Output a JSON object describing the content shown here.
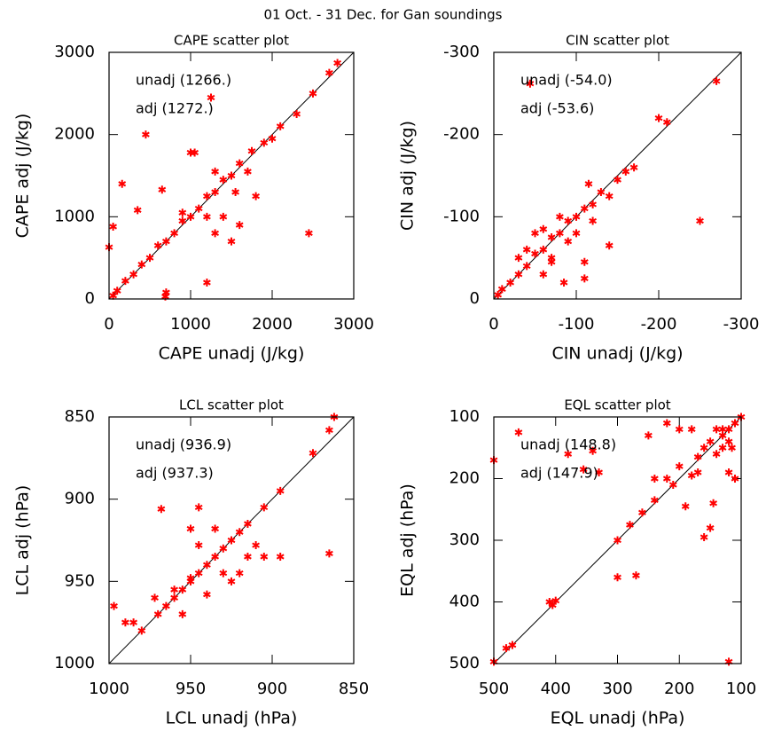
{
  "title": "01 Oct. - 31 Dec. for Gan soundings",
  "chart_data": [
    {
      "type": "scatter",
      "title": "CAPE scatter plot",
      "xlabel": "CAPE unadj (J/kg)",
      "ylabel": "CAPE adj (J/kg)",
      "annotations": [
        "unadj (1266.)",
        "adj (1272.)"
      ],
      "color": "#ff0000",
      "xlim": [
        0,
        3000
      ],
      "ylim": [
        0,
        3000
      ],
      "xticks": [
        0,
        1000,
        2000,
        3000
      ],
      "yticks": [
        0,
        1000,
        2000,
        3000
      ],
      "x": [
        0,
        50,
        160,
        350,
        450,
        650,
        700,
        690,
        1000,
        1050,
        1200,
        1250,
        1500,
        1600,
        2450,
        1800,
        1400,
        1300,
        2800,
        2700,
        2500,
        2300,
        2100,
        2000,
        1900,
        1750,
        1600,
        1500,
        1400,
        1300,
        1200,
        1100,
        1000,
        900,
        800,
        700,
        600,
        500,
        400,
        300,
        200,
        100,
        50,
        1700,
        1300,
        1200,
        900,
        1550
      ],
      "values": [
        630,
        880,
        1400,
        1080,
        2000,
        1330,
        80,
        30,
        1780,
        1780,
        200,
        2450,
        700,
        900,
        800,
        1250,
        1000,
        800,
        2870,
        2750,
        2500,
        2250,
        2100,
        1950,
        1900,
        1800,
        1650,
        1500,
        1450,
        1300,
        1250,
        1100,
        1000,
        950,
        800,
        700,
        650,
        500,
        420,
        300,
        220,
        100,
        40,
        1550,
        1550,
        1000,
        1050,
        1300
      ]
    },
    {
      "type": "scatter",
      "title": "CIN scatter plot",
      "xlabel": "CIN unadj (J/kg)",
      "ylabel": "CIN adj (J/kg)",
      "annotations": [
        "unadj (-54.0)",
        "adj (-53.6)"
      ],
      "color": "#ff0000",
      "xlim": [
        0,
        -300
      ],
      "ylim": [
        0,
        -300
      ],
      "xticks": [
        0,
        -100,
        -200,
        -300
      ],
      "yticks": [
        0,
        -100,
        -200,
        -300
      ],
      "x": [
        -44,
        -270,
        -200,
        -210,
        -250,
        -140,
        -170,
        -160,
        -150,
        -130,
        -120,
        -110,
        -100,
        -90,
        -80,
        -70,
        -60,
        -50,
        -40,
        -30,
        -20,
        -10,
        -5,
        -60,
        -80,
        -50,
        -100,
        -90,
        -70,
        -110,
        -85,
        -110,
        -60,
        -40,
        -30,
        -140,
        -120,
        -70,
        -115
      ],
      "values": [
        -262,
        -265,
        -220,
        -215,
        -95,
        -65,
        -160,
        -155,
        -145,
        -130,
        -115,
        -110,
        -100,
        -95,
        -80,
        -75,
        -60,
        -55,
        -40,
        -30,
        -20,
        -12,
        -5,
        -85,
        -100,
        -80,
        -80,
        -70,
        -45,
        -45,
        -20,
        -25,
        -30,
        -60,
        -50,
        -125,
        -95,
        -50,
        -140
      ]
    },
    {
      "type": "scatter",
      "title": "LCL scatter plot",
      "xlabel": "LCL unadj (hPa)",
      "ylabel": "LCL adj (hPa)",
      "annotations": [
        "unadj (936.9)",
        "adj (937.3)"
      ],
      "color": "#ff0000",
      "xlim": [
        1000,
        850
      ],
      "ylim": [
        1000,
        850
      ],
      "xticks": [
        1000,
        950,
        900,
        850
      ],
      "yticks": [
        1000,
        950,
        900,
        850
      ],
      "x": [
        862,
        865,
        875,
        895,
        905,
        915,
        920,
        925,
        930,
        935,
        940,
        945,
        950,
        955,
        960,
        965,
        970,
        980,
        968,
        950,
        945,
        935,
        925,
        920,
        915,
        905,
        895,
        865,
        940,
        950,
        960,
        990,
        997,
        972,
        985,
        955,
        930,
        945,
        910
      ],
      "values": [
        850,
        858,
        872,
        895,
        905,
        915,
        920,
        925,
        930,
        935,
        940,
        945,
        950,
        955,
        960,
        965,
        970,
        980,
        906,
        918,
        905,
        918,
        950,
        945,
        935,
        935,
        935,
        933,
        958,
        948,
        955,
        975,
        965,
        960,
        975,
        970,
        945,
        928,
        928
      ]
    },
    {
      "type": "scatter",
      "title": "EQL scatter plot",
      "xlabel": "EQL unadj (hPa)",
      "ylabel": "EQL adj (hPa)",
      "annotations": [
        "unadj (148.8)",
        "adj (147.9)"
      ],
      "color": "#ff0000",
      "xlim": [
        500,
        100
      ],
      "ylim": [
        500,
        100
      ],
      "xticks": [
        500,
        400,
        300,
        200,
        100
      ],
      "yticks": [
        500,
        400,
        300,
        200,
        100
      ],
      "x": [
        500,
        120,
        500,
        460,
        355,
        340,
        330,
        300,
        270,
        300,
        280,
        260,
        240,
        220,
        200,
        190,
        180,
        170,
        160,
        150,
        140,
        130,
        120,
        110,
        100,
        150,
        160,
        170,
        140,
        130,
        120,
        180,
        200,
        220,
        250,
        240,
        210,
        405,
        410,
        400,
        470,
        480,
        380,
        120,
        110,
        145,
        130,
        115
      ],
      "values": [
        497,
        497,
        170,
        125,
        185,
        155,
        190,
        360,
        357,
        300,
        275,
        255,
        235,
        200,
        180,
        245,
        195,
        190,
        295,
        280,
        160,
        130,
        120,
        110,
        100,
        140,
        150,
        165,
        120,
        150,
        140,
        120,
        120,
        110,
        130,
        200,
        210,
        405,
        400,
        398,
        470,
        475,
        160,
        190,
        200,
        240,
        120,
        150
      ]
    }
  ]
}
